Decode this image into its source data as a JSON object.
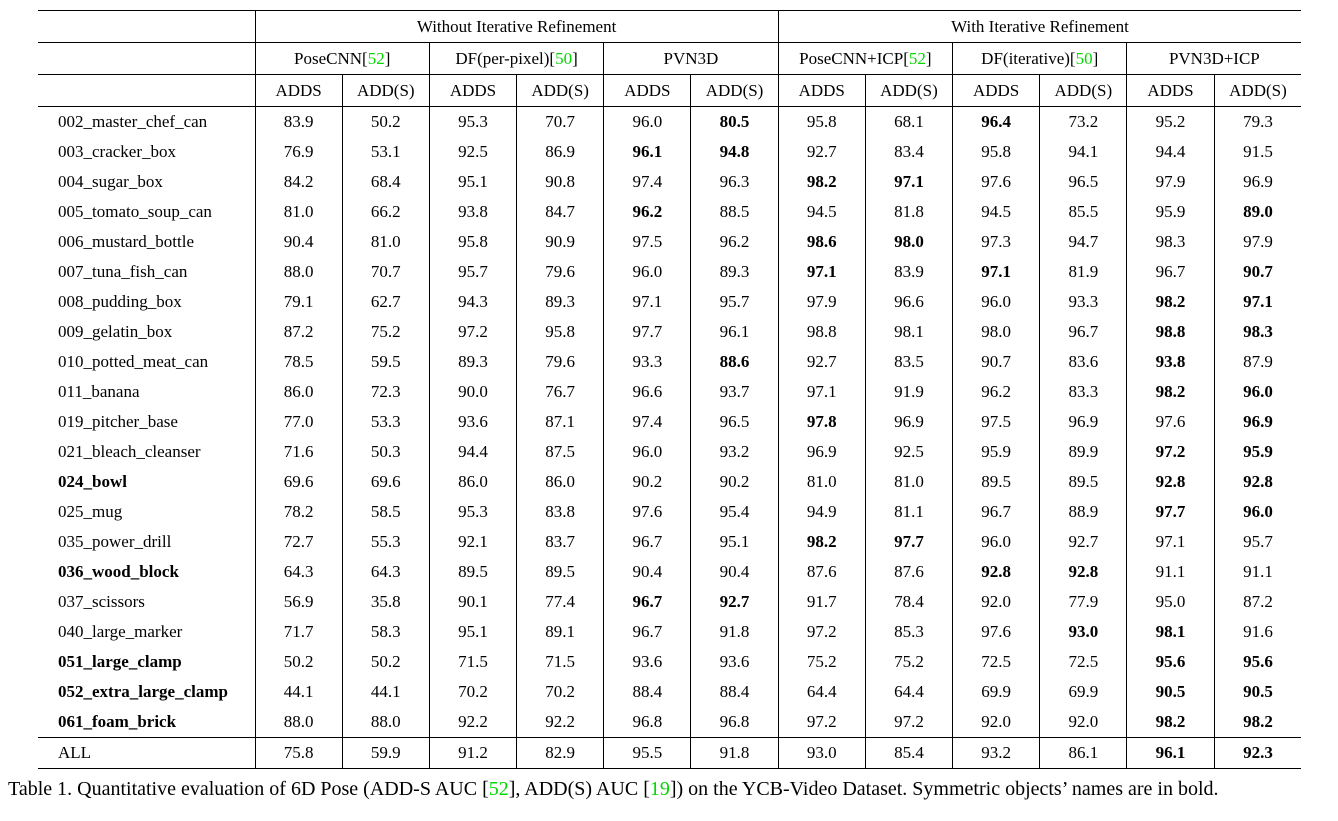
{
  "colors": {
    "ref_green": "#00d800",
    "text": "#000000",
    "border": "#000000",
    "background": "#ffffff"
  },
  "table": {
    "group_headers": [
      {
        "label": "Without Iterative Refinement"
      },
      {
        "label": "With Iterative Refinement"
      }
    ],
    "method_headers": [
      {
        "segments": [
          {
            "t": "PoseCNN["
          },
          {
            "t": "52",
            "green": true
          },
          {
            "t": "]"
          }
        ]
      },
      {
        "segments": [
          {
            "t": "DF(per-pixel)["
          },
          {
            "t": "50",
            "green": true
          },
          {
            "t": "]"
          }
        ]
      },
      {
        "segments": [
          {
            "t": "PVN3D"
          }
        ]
      },
      {
        "segments": [
          {
            "t": "PoseCNN+ICP["
          },
          {
            "t": "52",
            "green": true
          },
          {
            "t": "]"
          }
        ]
      },
      {
        "segments": [
          {
            "t": "DF(iterative)["
          },
          {
            "t": "50",
            "green": true
          },
          {
            "t": "]"
          }
        ]
      },
      {
        "segments": [
          {
            "t": "PVN3D+ICP"
          }
        ]
      }
    ],
    "metric_headers": [
      "ADDS",
      "ADD(S)",
      "ADDS",
      "ADD(S)",
      "ADDS",
      "ADD(S)",
      "ADDS",
      "ADD(S)",
      "ADDS",
      "ADD(S)",
      "ADDS",
      "ADD(S)"
    ],
    "rows": [
      {
        "name": "002_master_chef_can",
        "name_bold": false,
        "values": [
          "83.9",
          "50.2",
          "95.3",
          "70.7",
          "96.0",
          "80.5",
          "95.8",
          "68.1",
          "96.4",
          "73.2",
          "95.2",
          "79.3"
        ],
        "bold": [
          5,
          8
        ]
      },
      {
        "name": "003_cracker_box",
        "name_bold": false,
        "values": [
          "76.9",
          "53.1",
          "92.5",
          "86.9",
          "96.1",
          "94.8",
          "92.7",
          "83.4",
          "95.8",
          "94.1",
          "94.4",
          "91.5"
        ],
        "bold": [
          4,
          5
        ]
      },
      {
        "name": "004_sugar_box",
        "name_bold": false,
        "values": [
          "84.2",
          "68.4",
          "95.1",
          "90.8",
          "97.4",
          "96.3",
          "98.2",
          "97.1",
          "97.6",
          "96.5",
          "97.9",
          "96.9"
        ],
        "bold": [
          6,
          7
        ]
      },
      {
        "name": "005_tomato_soup_can",
        "name_bold": false,
        "values": [
          "81.0",
          "66.2",
          "93.8",
          "84.7",
          "96.2",
          "88.5",
          "94.5",
          "81.8",
          "94.5",
          "85.5",
          "95.9",
          "89.0"
        ],
        "bold": [
          4,
          11
        ]
      },
      {
        "name": "006_mustard_bottle",
        "name_bold": false,
        "values": [
          "90.4",
          "81.0",
          "95.8",
          "90.9",
          "97.5",
          "96.2",
          "98.6",
          "98.0",
          "97.3",
          "94.7",
          "98.3",
          "97.9"
        ],
        "bold": [
          6,
          7
        ]
      },
      {
        "name": "007_tuna_fish_can",
        "name_bold": false,
        "values": [
          "88.0",
          "70.7",
          "95.7",
          "79.6",
          "96.0",
          "89.3",
          "97.1",
          "83.9",
          "97.1",
          "81.9",
          "96.7",
          "90.7"
        ],
        "bold": [
          6,
          8,
          11
        ]
      },
      {
        "name": "008_pudding_box",
        "name_bold": false,
        "values": [
          "79.1",
          "62.7",
          "94.3",
          "89.3",
          "97.1",
          "95.7",
          "97.9",
          "96.6",
          "96.0",
          "93.3",
          "98.2",
          "97.1"
        ],
        "bold": [
          10,
          11
        ]
      },
      {
        "name": "009_gelatin_box",
        "name_bold": false,
        "values": [
          "87.2",
          "75.2",
          "97.2",
          "95.8",
          "97.7",
          "96.1",
          "98.8",
          "98.1",
          "98.0",
          "96.7",
          "98.8",
          "98.3"
        ],
        "bold": [
          10,
          11
        ]
      },
      {
        "name": "010_potted_meat_can",
        "name_bold": false,
        "values": [
          "78.5",
          "59.5",
          "89.3",
          "79.6",
          "93.3",
          "88.6",
          "92.7",
          "83.5",
          "90.7",
          "83.6",
          "93.8",
          "87.9"
        ],
        "bold": [
          5,
          10
        ]
      },
      {
        "name": "011_banana",
        "name_bold": false,
        "values": [
          "86.0",
          "72.3",
          "90.0",
          "76.7",
          "96.6",
          "93.7",
          "97.1",
          "91.9",
          "96.2",
          "83.3",
          "98.2",
          "96.0"
        ],
        "bold": [
          10,
          11
        ]
      },
      {
        "name": "019_pitcher_base",
        "name_bold": false,
        "values": [
          "77.0",
          "53.3",
          "93.6",
          "87.1",
          "97.4",
          "96.5",
          "97.8",
          "96.9",
          "97.5",
          "96.9",
          "97.6",
          "96.9"
        ],
        "bold": [
          6,
          11
        ]
      },
      {
        "name": "021_bleach_cleanser",
        "name_bold": false,
        "values": [
          "71.6",
          "50.3",
          "94.4",
          "87.5",
          "96.0",
          "93.2",
          "96.9",
          "92.5",
          "95.9",
          "89.9",
          "97.2",
          "95.9"
        ],
        "bold": [
          10,
          11
        ]
      },
      {
        "name": "024_bowl",
        "name_bold": true,
        "values": [
          "69.6",
          "69.6",
          "86.0",
          "86.0",
          "90.2",
          "90.2",
          "81.0",
          "81.0",
          "89.5",
          "89.5",
          "92.8",
          "92.8"
        ],
        "bold": [
          10,
          11
        ]
      },
      {
        "name": "025_mug",
        "name_bold": false,
        "values": [
          "78.2",
          "58.5",
          "95.3",
          "83.8",
          "97.6",
          "95.4",
          "94.9",
          "81.1",
          "96.7",
          "88.9",
          "97.7",
          "96.0"
        ],
        "bold": [
          10,
          11
        ]
      },
      {
        "name": "035_power_drill",
        "name_bold": false,
        "values": [
          "72.7",
          "55.3",
          "92.1",
          "83.7",
          "96.7",
          "95.1",
          "98.2",
          "97.7",
          "96.0",
          "92.7",
          "97.1",
          "95.7"
        ],
        "bold": [
          6,
          7
        ]
      },
      {
        "name": "036_wood_block",
        "name_bold": true,
        "values": [
          "64.3",
          "64.3",
          "89.5",
          "89.5",
          "90.4",
          "90.4",
          "87.6",
          "87.6",
          "92.8",
          "92.8",
          "91.1",
          "91.1"
        ],
        "bold": [
          8,
          9
        ]
      },
      {
        "name": "037_scissors",
        "name_bold": false,
        "values": [
          "56.9",
          "35.8",
          "90.1",
          "77.4",
          "96.7",
          "92.7",
          "91.7",
          "78.4",
          "92.0",
          "77.9",
          "95.0",
          "87.2"
        ],
        "bold": [
          4,
          5
        ]
      },
      {
        "name": "040_large_marker",
        "name_bold": false,
        "values": [
          "71.7",
          "58.3",
          "95.1",
          "89.1",
          "96.7",
          "91.8",
          "97.2",
          "85.3",
          "97.6",
          "93.0",
          "98.1",
          "91.6"
        ],
        "bold": [
          9,
          10
        ]
      },
      {
        "name": "051_large_clamp",
        "name_bold": true,
        "values": [
          "50.2",
          "50.2",
          "71.5",
          "71.5",
          "93.6",
          "93.6",
          "75.2",
          "75.2",
          "72.5",
          "72.5",
          "95.6",
          "95.6"
        ],
        "bold": [
          10,
          11
        ]
      },
      {
        "name": "052_extra_large_clamp",
        "name_bold": true,
        "values": [
          "44.1",
          "44.1",
          "70.2",
          "70.2",
          "88.4",
          "88.4",
          "64.4",
          "64.4",
          "69.9",
          "69.9",
          "90.5",
          "90.5"
        ],
        "bold": [
          10,
          11
        ]
      },
      {
        "name": "061_foam_brick",
        "name_bold": true,
        "values": [
          "88.0",
          "88.0",
          "92.2",
          "92.2",
          "96.8",
          "96.8",
          "97.2",
          "97.2",
          "92.0",
          "92.0",
          "98.2",
          "98.2"
        ],
        "bold": [
          10,
          11
        ]
      }
    ],
    "footer_row": {
      "name": "ALL",
      "name_bold": false,
      "values": [
        "75.8",
        "59.9",
        "91.2",
        "82.9",
        "95.5",
        "91.8",
        "93.0",
        "85.4",
        "93.2",
        "86.1",
        "96.1",
        "92.3"
      ],
      "bold": [
        10,
        11
      ]
    }
  },
  "caption": {
    "segments": [
      {
        "t": "Table 1. Quantitative evaluation of 6D Pose (ADD-S AUC ["
      },
      {
        "t": "52",
        "green": true
      },
      {
        "t": "], ADD(S) AUC ["
      },
      {
        "t": "19",
        "green": true
      },
      {
        "t": "]) on the YCB-Video Dataset. Symmetric objects’ names are in bold."
      }
    ]
  }
}
